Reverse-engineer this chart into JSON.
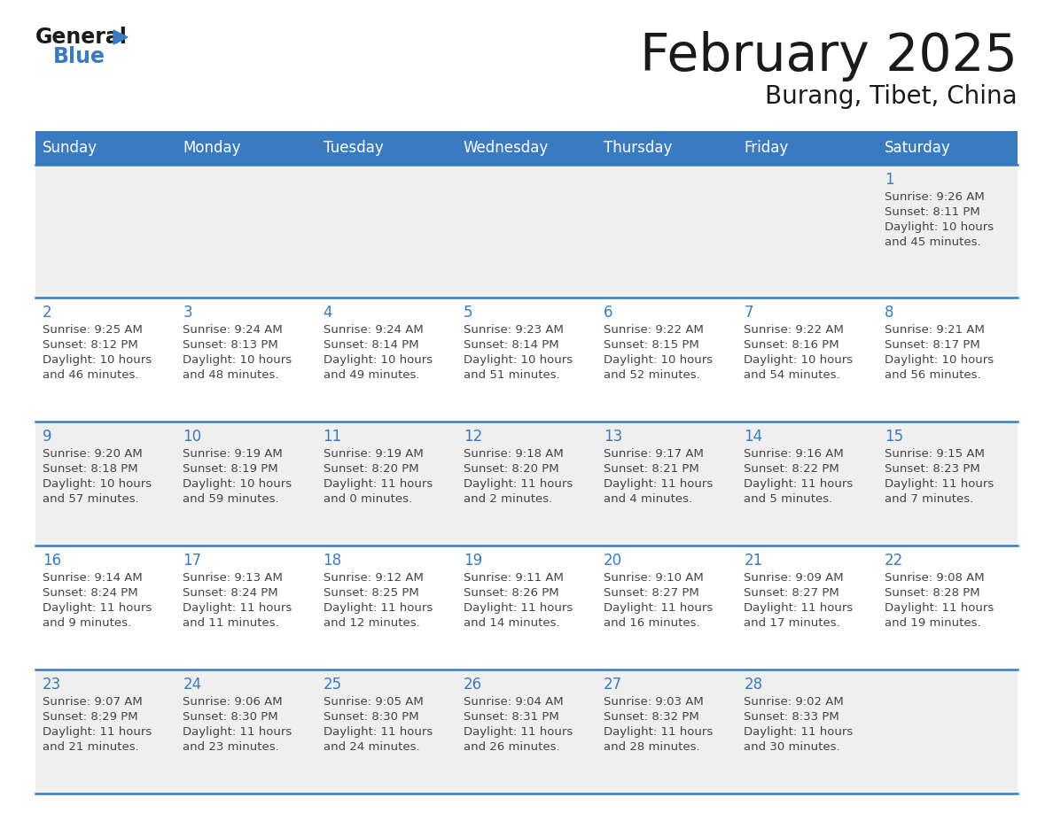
{
  "title": "February 2025",
  "subtitle": "Burang, Tibet, China",
  "header_bg": "#3a7abf",
  "header_text_color": "#ffffff",
  "days_of_week": [
    "Sunday",
    "Monday",
    "Tuesday",
    "Wednesday",
    "Thursday",
    "Friday",
    "Saturday"
  ],
  "row_bg_even": "#efefef",
  "row_bg_odd": "#ffffff",
  "day_number_color": "#3a7abf",
  "cell_text_color": "#444444",
  "grid_line_color": "#3a7abf",
  "calendar": [
    [
      null,
      null,
      null,
      null,
      null,
      null,
      {
        "day": 1,
        "sunrise": "9:26 AM",
        "sunset": "8:11 PM",
        "daylight_line1": "Daylight: 10 hours",
        "daylight_line2": "and 45 minutes."
      }
    ],
    [
      {
        "day": 2,
        "sunrise": "9:25 AM",
        "sunset": "8:12 PM",
        "daylight_line1": "Daylight: 10 hours",
        "daylight_line2": "and 46 minutes."
      },
      {
        "day": 3,
        "sunrise": "9:24 AM",
        "sunset": "8:13 PM",
        "daylight_line1": "Daylight: 10 hours",
        "daylight_line2": "and 48 minutes."
      },
      {
        "day": 4,
        "sunrise": "9:24 AM",
        "sunset": "8:14 PM",
        "daylight_line1": "Daylight: 10 hours",
        "daylight_line2": "and 49 minutes."
      },
      {
        "day": 5,
        "sunrise": "9:23 AM",
        "sunset": "8:14 PM",
        "daylight_line1": "Daylight: 10 hours",
        "daylight_line2": "and 51 minutes."
      },
      {
        "day": 6,
        "sunrise": "9:22 AM",
        "sunset": "8:15 PM",
        "daylight_line1": "Daylight: 10 hours",
        "daylight_line2": "and 52 minutes."
      },
      {
        "day": 7,
        "sunrise": "9:22 AM",
        "sunset": "8:16 PM",
        "daylight_line1": "Daylight: 10 hours",
        "daylight_line2": "and 54 minutes."
      },
      {
        "day": 8,
        "sunrise": "9:21 AM",
        "sunset": "8:17 PM",
        "daylight_line1": "Daylight: 10 hours",
        "daylight_line2": "and 56 minutes."
      }
    ],
    [
      {
        "day": 9,
        "sunrise": "9:20 AM",
        "sunset": "8:18 PM",
        "daylight_line1": "Daylight: 10 hours",
        "daylight_line2": "and 57 minutes."
      },
      {
        "day": 10,
        "sunrise": "9:19 AM",
        "sunset": "8:19 PM",
        "daylight_line1": "Daylight: 10 hours",
        "daylight_line2": "and 59 minutes."
      },
      {
        "day": 11,
        "sunrise": "9:19 AM",
        "sunset": "8:20 PM",
        "daylight_line1": "Daylight: 11 hours",
        "daylight_line2": "and 0 minutes."
      },
      {
        "day": 12,
        "sunrise": "9:18 AM",
        "sunset": "8:20 PM",
        "daylight_line1": "Daylight: 11 hours",
        "daylight_line2": "and 2 minutes."
      },
      {
        "day": 13,
        "sunrise": "9:17 AM",
        "sunset": "8:21 PM",
        "daylight_line1": "Daylight: 11 hours",
        "daylight_line2": "and 4 minutes."
      },
      {
        "day": 14,
        "sunrise": "9:16 AM",
        "sunset": "8:22 PM",
        "daylight_line1": "Daylight: 11 hours",
        "daylight_line2": "and 5 minutes."
      },
      {
        "day": 15,
        "sunrise": "9:15 AM",
        "sunset": "8:23 PM",
        "daylight_line1": "Daylight: 11 hours",
        "daylight_line2": "and 7 minutes."
      }
    ],
    [
      {
        "day": 16,
        "sunrise": "9:14 AM",
        "sunset": "8:24 PM",
        "daylight_line1": "Daylight: 11 hours",
        "daylight_line2": "and 9 minutes."
      },
      {
        "day": 17,
        "sunrise": "9:13 AM",
        "sunset": "8:24 PM",
        "daylight_line1": "Daylight: 11 hours",
        "daylight_line2": "and 11 minutes."
      },
      {
        "day": 18,
        "sunrise": "9:12 AM",
        "sunset": "8:25 PM",
        "daylight_line1": "Daylight: 11 hours",
        "daylight_line2": "and 12 minutes."
      },
      {
        "day": 19,
        "sunrise": "9:11 AM",
        "sunset": "8:26 PM",
        "daylight_line1": "Daylight: 11 hours",
        "daylight_line2": "and 14 minutes."
      },
      {
        "day": 20,
        "sunrise": "9:10 AM",
        "sunset": "8:27 PM",
        "daylight_line1": "Daylight: 11 hours",
        "daylight_line2": "and 16 minutes."
      },
      {
        "day": 21,
        "sunrise": "9:09 AM",
        "sunset": "8:27 PM",
        "daylight_line1": "Daylight: 11 hours",
        "daylight_line2": "and 17 minutes."
      },
      {
        "day": 22,
        "sunrise": "9:08 AM",
        "sunset": "8:28 PM",
        "daylight_line1": "Daylight: 11 hours",
        "daylight_line2": "and 19 minutes."
      }
    ],
    [
      {
        "day": 23,
        "sunrise": "9:07 AM",
        "sunset": "8:29 PM",
        "daylight_line1": "Daylight: 11 hours",
        "daylight_line2": "and 21 minutes."
      },
      {
        "day": 24,
        "sunrise": "9:06 AM",
        "sunset": "8:30 PM",
        "daylight_line1": "Daylight: 11 hours",
        "daylight_line2": "and 23 minutes."
      },
      {
        "day": 25,
        "sunrise": "9:05 AM",
        "sunset": "8:30 PM",
        "daylight_line1": "Daylight: 11 hours",
        "daylight_line2": "and 24 minutes."
      },
      {
        "day": 26,
        "sunrise": "9:04 AM",
        "sunset": "8:31 PM",
        "daylight_line1": "Daylight: 11 hours",
        "daylight_line2": "and 26 minutes."
      },
      {
        "day": 27,
        "sunrise": "9:03 AM",
        "sunset": "8:32 PM",
        "daylight_line1": "Daylight: 11 hours",
        "daylight_line2": "and 28 minutes."
      },
      {
        "day": 28,
        "sunrise": "9:02 AM",
        "sunset": "8:33 PM",
        "daylight_line1": "Daylight: 11 hours",
        "daylight_line2": "and 30 minutes."
      },
      null
    ]
  ]
}
